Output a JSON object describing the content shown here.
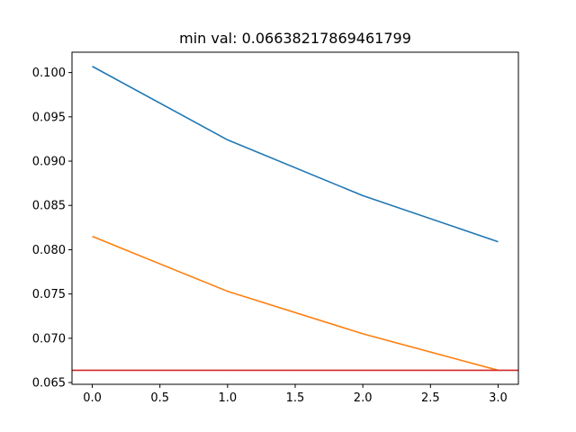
{
  "chart_data": {
    "type": "line",
    "title": "min val: 0.06638217869461799",
    "xlabel": "",
    "ylabel": "",
    "xlim": [
      -0.15,
      3.15
    ],
    "ylim": [
      0.0648,
      0.1023
    ],
    "x_ticks": [
      0.0,
      0.5,
      1.0,
      1.5,
      2.0,
      2.5,
      3.0
    ],
    "x_tick_labels": [
      "0.0",
      "0.5",
      "1.0",
      "1.5",
      "2.0",
      "2.5",
      "3.0"
    ],
    "y_ticks": [
      0.065,
      0.07,
      0.075,
      0.08,
      0.085,
      0.09,
      0.095,
      0.1
    ],
    "y_tick_labels": [
      "0.065",
      "0.070",
      "0.075",
      "0.080",
      "0.085",
      "0.090",
      "0.095",
      "0.100"
    ],
    "grid": false,
    "legend": "none",
    "series": [
      {
        "x": [
          0,
          1,
          2,
          3
        ],
        "values": [
          0.1007,
          0.0924,
          0.0861,
          0.0809
        ],
        "color": "#1f77b4"
      },
      {
        "x": [
          0,
          1,
          2,
          3
        ],
        "values": [
          0.0815,
          0.0753,
          0.0705,
          0.06638
        ],
        "color": "#ff7f0e"
      }
    ],
    "hlines": [
      {
        "y": 0.06638217869461799,
        "color": "#d62728"
      }
    ]
  }
}
